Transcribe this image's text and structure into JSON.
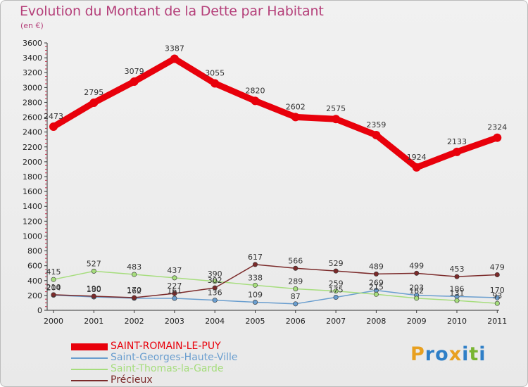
{
  "header": {
    "title": "Evolution du Montant de la Dette par Habitant",
    "subtitle": "(en €)"
  },
  "brand": {
    "letters": [
      "P",
      "r",
      "o",
      "x",
      "i",
      "t",
      "i"
    ],
    "colors": [
      "#e8a020",
      "#2f7fc7",
      "#2f7fc7",
      "#e8a020",
      "#2f7fc7",
      "#79b531",
      "#2f7fc7"
    ]
  },
  "chart_data": {
    "type": "line",
    "title": "Evolution du Montant de la Dette par Habitant",
    "subtitle": "(en €)",
    "xlabel": "",
    "ylabel": "",
    "categories": [
      "2000",
      "2001",
      "2002",
      "2003",
      "2004",
      "2005",
      "2006",
      "2007",
      "2008",
      "2009",
      "2010",
      "2011"
    ],
    "ylim": [
      0,
      3600
    ],
    "yticks": [
      0,
      200,
      400,
      600,
      800,
      1000,
      1200,
      1400,
      1600,
      1800,
      2000,
      2200,
      2400,
      2600,
      2800,
      3000,
      3200,
      3400,
      3600
    ],
    "grid": false,
    "legend_position": "bottom-left",
    "series": [
      {
        "name": "SAINT-ROMAIN-LE-PUY",
        "color": "#e8000b",
        "emphasis": true,
        "values": [
          2473,
          2795,
          3079,
          3387,
          3055,
          2820,
          2602,
          2575,
          2359,
          1924,
          2133,
          2324
        ]
      },
      {
        "name": "Saint-Georges-Haute-Ville",
        "color": "#6a9ecf",
        "emphasis": false,
        "values": [
          204,
          180,
          162,
          161,
          136,
          109,
          87,
          175,
          269,
          203,
          186,
          170
        ]
      },
      {
        "name": "Saint-Thomas-la-Garde",
        "color": "#a6dd7d",
        "emphasis": false,
        "values": [
          415,
          527,
          483,
          437,
          390,
          338,
          289,
          259,
          215,
          162,
          131,
          93
        ]
      },
      {
        "name": "Précieux",
        "color": "#7b2a2a",
        "emphasis": false,
        "values": [
          210,
          190,
          170,
          227,
          302,
          617,
          566,
          529,
          489,
          499,
          453,
          479
        ]
      }
    ]
  }
}
